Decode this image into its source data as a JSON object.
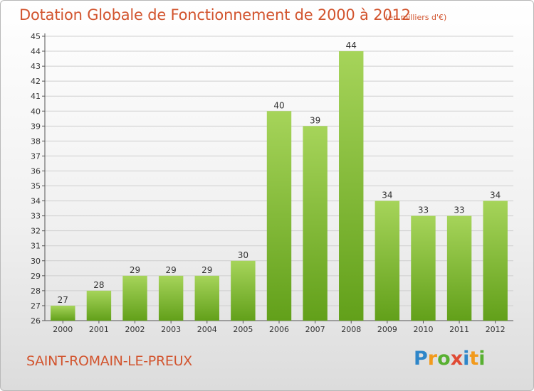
{
  "header": {
    "title": "Dotation Globale de Fonctionnement de 2000 à 2012",
    "subtitle": "(en milliers d'€)"
  },
  "footer": {
    "commune": "SAINT-ROMAIN-LE-PREUX",
    "logo": [
      "P",
      "r",
      "o",
      "x",
      "i",
      "t",
      "i"
    ]
  },
  "colors": {
    "bar_light": "#a6d45a",
    "bar_dark": "#62a01a",
    "text_accent": "#d2542e",
    "grid": "#cfcfcf"
  },
  "chart_data": {
    "type": "bar",
    "title": "Dotation Globale de Fonctionnement de 2000 à 2012",
    "subtitle": "(en milliers d'€)",
    "xlabel": "",
    "ylabel": "",
    "categories": [
      "2000",
      "2001",
      "2002",
      "2003",
      "2004",
      "2005",
      "2006",
      "2007",
      "2008",
      "2009",
      "2010",
      "2011",
      "2012"
    ],
    "values": [
      27,
      28,
      29,
      29,
      29,
      30,
      40,
      39,
      44,
      34,
      33,
      33,
      34
    ],
    "ylim": [
      26,
      45
    ],
    "yticks": [
      26,
      27,
      28,
      29,
      30,
      31,
      32,
      33,
      34,
      35,
      36,
      37,
      38,
      39,
      40,
      41,
      42,
      43,
      44,
      45
    ],
    "grid": true,
    "data_labels": true
  }
}
